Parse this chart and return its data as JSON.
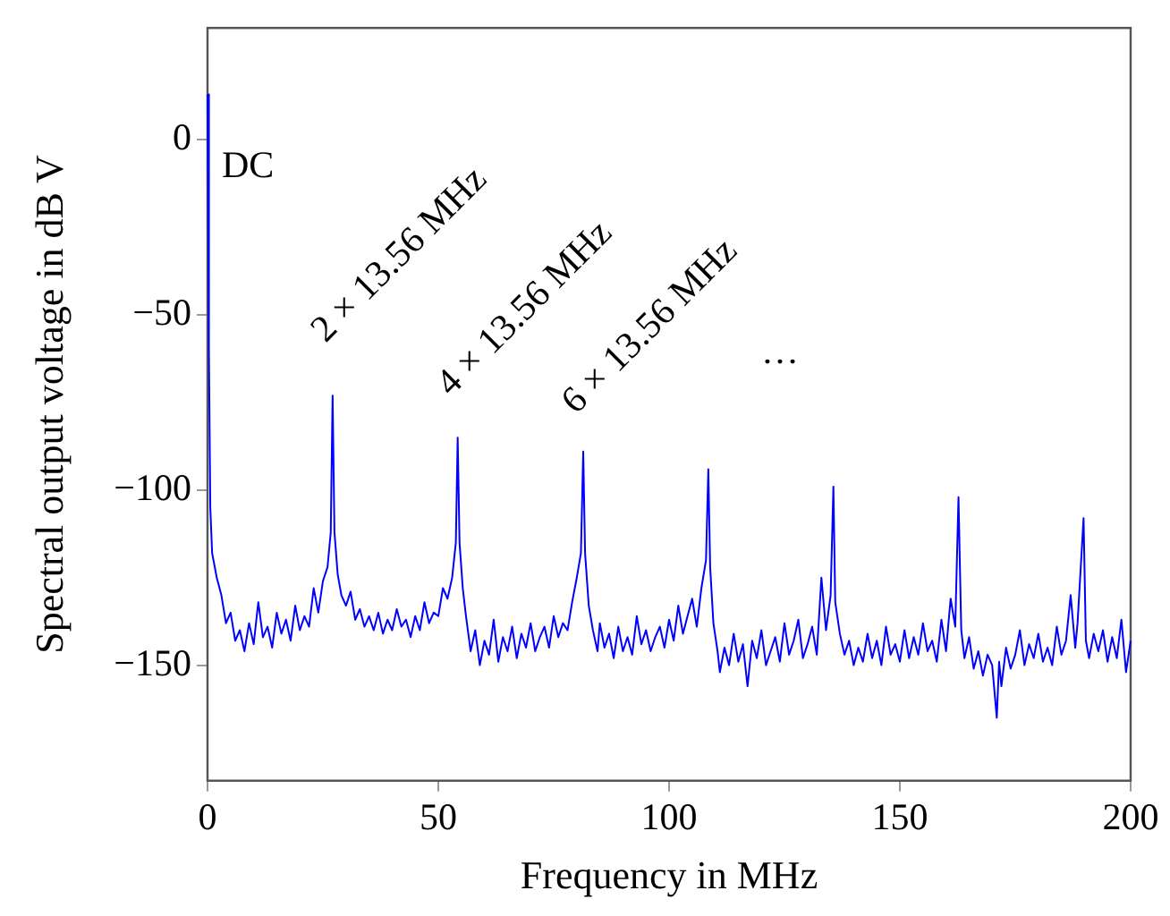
{
  "chart_data": {
    "type": "line",
    "xlabel": "Frequency in MHz",
    "ylabel": "Spectral output voltage in dB V",
    "xlim": [
      0,
      200
    ],
    "xticks": [
      0,
      50,
      100,
      150,
      200
    ],
    "ylim": [
      -183,
      32
    ],
    "yticks": [
      {
        "value": -150,
        "label": "−150"
      },
      {
        "value": -100,
        "label": "−100"
      },
      {
        "value": -50,
        "label": "−50"
      },
      0
    ],
    "grid": false,
    "legend": false,
    "marker": "none",
    "line_style": "solid",
    "annotations": [
      "DC",
      "2 × 13.56 MHz",
      "4 × 13.56 MHz",
      "6 × 13.56 MHz",
      "…"
    ],
    "series": [
      {
        "color": "#0000ff",
        "x": [
          0,
          0.3,
          0.6,
          1,
          2,
          3,
          4,
          5,
          6,
          7,
          8,
          9,
          10,
          11,
          12,
          13,
          14,
          15,
          16,
          17,
          18,
          19,
          20,
          21,
          22,
          23,
          24,
          25,
          26,
          26.7,
          27.1,
          27.5,
          28.2,
          29,
          30,
          31,
          32,
          33,
          34,
          35,
          36,
          37,
          38,
          39,
          40,
          41,
          42,
          43,
          44,
          45,
          46,
          47,
          48,
          49,
          50,
          51,
          52,
          53,
          53.8,
          54.2,
          54.6,
          55.3,
          56,
          57,
          58,
          59,
          60,
          61,
          62,
          63,
          64,
          65,
          66,
          67,
          68,
          69,
          70,
          71,
          72,
          73,
          74,
          75,
          76,
          77,
          78,
          79,
          80,
          80.9,
          81.4,
          81.8,
          82.6,
          83.5,
          84.5,
          85,
          86,
          87,
          88,
          89,
          90,
          91,
          92,
          93,
          94,
          95,
          96,
          97,
          98,
          99,
          100,
          101,
          102,
          103,
          104,
          105,
          106,
          107,
          108,
          108.5,
          108.9,
          109.6,
          110.5,
          111,
          112,
          113,
          114,
          115,
          116,
          117,
          118,
          119,
          120,
          121,
          122,
          123,
          124,
          125,
          126,
          127,
          128,
          129,
          130,
          131,
          132,
          133,
          134,
          135,
          135.6,
          136,
          137,
          138,
          139,
          140,
          141,
          142,
          143,
          144,
          145,
          146,
          147,
          148,
          149,
          150,
          151,
          152,
          153,
          154,
          155,
          156,
          157,
          158,
          159,
          160,
          161,
          162,
          162.7,
          163.3,
          164,
          165,
          166,
          167,
          168,
          169,
          170,
          171,
          171.5,
          172,
          173,
          174,
          175,
          176,
          177,
          178,
          179,
          180,
          181,
          182,
          183,
          184,
          185,
          186,
          187,
          188,
          188.5,
          189.8,
          190.3,
          191,
          192,
          193,
          194,
          195,
          196,
          197,
          198,
          199,
          200
        ],
        "values": [
          13,
          -60,
          -105,
          -118,
          -125,
          -130,
          -138,
          -135,
          -143,
          -140,
          -146,
          -138,
          -144,
          -132,
          -142,
          -139,
          -145,
          -135,
          -141,
          -137,
          -143,
          -133,
          -140,
          -136,
          -139,
          -128,
          -135,
          -126,
          -122,
          -112,
          -73,
          -112,
          -124,
          -130,
          -133,
          -129,
          -137,
          -134,
          -139,
          -136,
          -140,
          -135,
          -141,
          -137,
          -140,
          -134,
          -139,
          -137,
          -142,
          -136,
          -140,
          -132,
          -138,
          -135,
          -136,
          -128,
          -131,
          -125,
          -115,
          -85,
          -115,
          -128,
          -136,
          -146,
          -140,
          -150,
          -143,
          -147,
          -137,
          -149,
          -142,
          -146,
          -139,
          -148,
          -141,
          -145,
          -138,
          -146,
          -142,
          -139,
          -145,
          -136,
          -142,
          -138,
          -140,
          -132,
          -125,
          -118,
          -89,
          -118,
          -133,
          -140,
          -146,
          -138,
          -145,
          -141,
          -148,
          -139,
          -146,
          -142,
          -147,
          -136,
          -144,
          -140,
          -146,
          -142,
          -139,
          -145,
          -137,
          -143,
          -133,
          -141,
          -136,
          -131,
          -139,
          -128,
          -120,
          -94,
          -122,
          -138,
          -146,
          -152,
          -145,
          -150,
          -141,
          -149,
          -144,
          -156,
          -143,
          -148,
          -140,
          -150,
          -146,
          -142,
          -149,
          -138,
          -147,
          -143,
          -137,
          -148,
          -144,
          -139,
          -147,
          -125,
          -140,
          -130,
          -99,
          -132,
          -141,
          -147,
          -143,
          -150,
          -145,
          -149,
          -141,
          -148,
          -143,
          -150,
          -139,
          -147,
          -144,
          -149,
          -140,
          -148,
          -142,
          -147,
          -138,
          -146,
          -143,
          -149,
          -137,
          -146,
          -131,
          -139,
          -102,
          -140,
          -148,
          -142,
          -151,
          -146,
          -153,
          -147,
          -150,
          -165,
          -149,
          -156,
          -145,
          -151,
          -147,
          -140,
          -150,
          -144,
          -148,
          -141,
          -149,
          -145,
          -150,
          -139,
          -147,
          -143,
          -130,
          -145,
          -138,
          -108,
          -143,
          -148,
          -141,
          -146,
          -140,
          -149,
          -142,
          -148,
          -137,
          -152,
          -143
        ]
      }
    ]
  }
}
